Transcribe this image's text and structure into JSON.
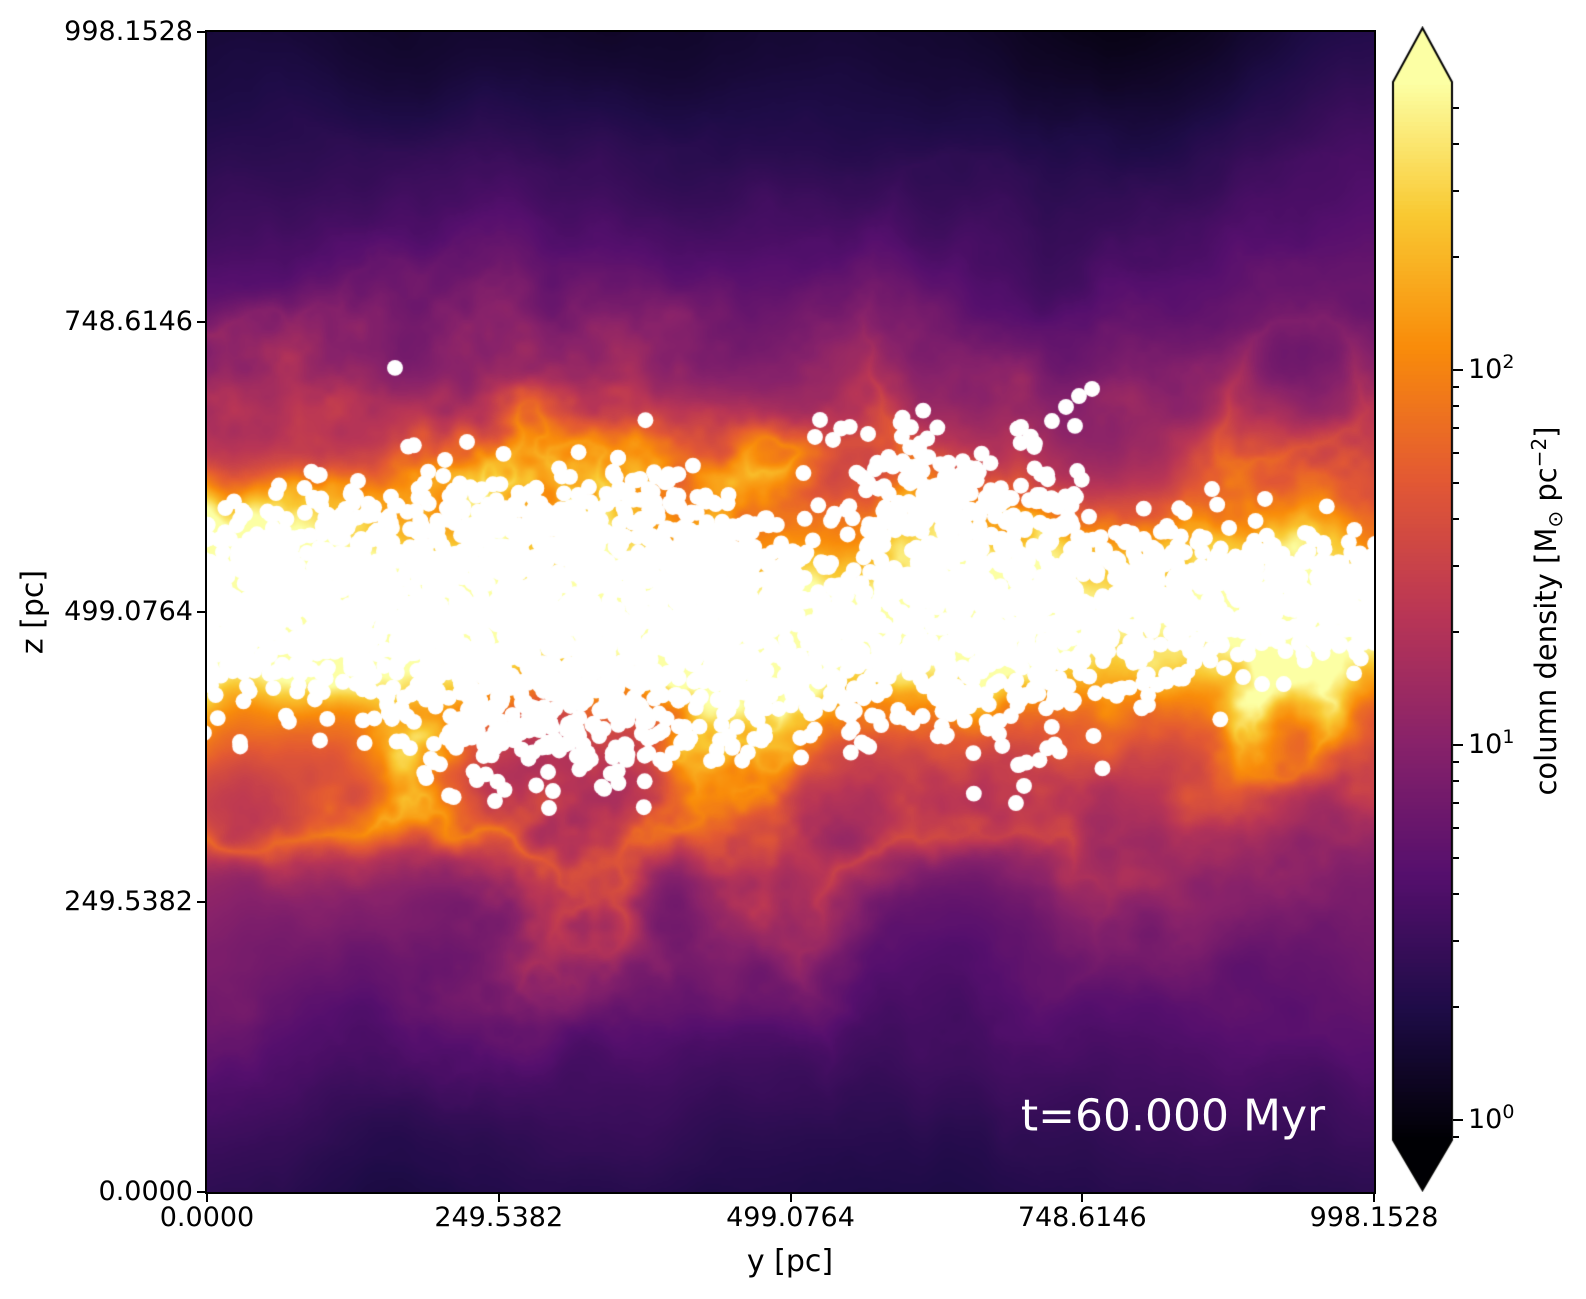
{
  "chart_data": {
    "type": "heatmap",
    "title": "",
    "xlabel": "y [pc]",
    "ylabel": "z [pc]",
    "x_range": [
      0.0,
      998.1528
    ],
    "z_range": [
      0.0,
      998.1528
    ],
    "x_ticks": [
      {
        "value": 0.0,
        "label": "0.0000"
      },
      {
        "value": 249.5382,
        "label": "249.5382"
      },
      {
        "value": 499.0764,
        "label": "499.0764"
      },
      {
        "value": 748.6146,
        "label": "748.6146"
      },
      {
        "value": 998.1528,
        "label": "998.1528"
      }
    ],
    "z_ticks": [
      {
        "value": 0.0,
        "label": "0.0000"
      },
      {
        "value": 249.5382,
        "label": "249.5382"
      },
      {
        "value": 499.0764,
        "label": "499.0764"
      },
      {
        "value": 748.6146,
        "label": "748.6146"
      },
      {
        "value": 998.1528,
        "label": "998.1528"
      }
    ],
    "annotation": {
      "text": "t=60.000 Myr",
      "color": "#ffffff"
    },
    "colorbar": {
      "label": {
        "pre": "column density [M",
        "sub": "⊙",
        "mid": " pc",
        "sup": "−2",
        "post": "]"
      },
      "scale": "log",
      "vmin": 0.885,
      "vmax": 586.0,
      "major_ticks": [
        {
          "value": 100,
          "base": "10",
          "exp": "2"
        },
        {
          "value": 10,
          "base": "10",
          "exp": "1"
        },
        {
          "value": 1,
          "base": "10",
          "exp": "0"
        }
      ],
      "minor_ticks_per_decade": [
        2,
        3,
        4,
        5,
        6,
        7,
        8,
        9
      ],
      "extend": "both",
      "colormap": "inferno"
    },
    "colormap_stops": [
      "#000004",
      "#1f0c48",
      "#550f6d",
      "#88226a",
      "#ba3655",
      "#e35933",
      "#f98c0a",
      "#f9c932",
      "#fcffa4"
    ],
    "field": {
      "description": "Edge-on gas column density map of a stratified galactic-disk ISM simulation: bright orange/yellow filamentary dense band at z~499 pc, purple diffuse halo with vertical plumes, near-black voids at top",
      "band_center_pc": 499.0,
      "band_scale_height_pc": 95,
      "halo_scale_height_pc": 330,
      "noise_seeds": {
        "base": 11,
        "plume": 23,
        "ridge": 47,
        "patch": 91
      }
    },
    "star_particles": {
      "color": "#ffffff",
      "radius_pc": 6.8,
      "seed": 1234,
      "clusters": [
        [
          7,
          505,
          21,
          34,
          120
        ],
        [
          80,
          501,
          51,
          39,
          260
        ],
        [
          182,
          509,
          60,
          43,
          300
        ],
        [
          285,
          518,
          60,
          47,
          300
        ],
        [
          388,
          501,
          51,
          43,
          260
        ],
        [
          323,
          423,
          51,
          39,
          180
        ],
        [
          225,
          423,
          43,
          34,
          140
        ],
        [
          473,
          518,
          34,
          26,
          90
        ],
        [
          460,
          449,
          38,
          34,
          120
        ],
        [
          559,
          475,
          43,
          39,
          160
        ],
        [
          644,
          544,
          51,
          47,
          220
        ],
        [
          665,
          475,
          60,
          47,
          260
        ],
        [
          747,
          509,
          51,
          43,
          220
        ],
        [
          824,
          509,
          38,
          30,
          130
        ],
        [
          892,
          514,
          43,
          26,
          130
        ],
        [
          961,
          509,
          38,
          24,
          120
        ],
        [
          998,
          509,
          21,
          26,
          70
        ],
        [
          422,
          544,
          43,
          30,
          140
        ],
        [
          293,
          578,
          51,
          26,
          90
        ],
        [
          122,
          561,
          43,
          26,
          80
        ],
        [
          610,
          604,
          38,
          26,
          80
        ]
      ],
      "outliers": [
        [
          160.8,
          709.1
        ],
        [
          524.3,
          664.3
        ],
        [
          535.4,
          647.1
        ],
        [
          520.0,
          649.7
        ],
        [
          565.4,
          652.3
        ],
        [
          722.7,
          663.4
        ],
        [
          734.7,
          675.5
        ],
        [
          745.8,
          684.9
        ],
        [
          757.0,
          691.0
        ],
        [
          742.4,
          659.2
        ],
        [
          203.6,
          629.9
        ],
        [
          222.4,
          645.4
        ],
        [
          859.6,
          604.9
        ],
        [
          874.2,
          571.4
        ],
        [
          803.2,
          462.1
        ],
        [
          869.9,
          450.9
        ],
        [
          886.2,
          443.1
        ],
        [
          902.4,
          437.1
        ],
        [
          693.7,
          367.4
        ],
        [
          698.8,
          349.4
        ],
        [
          691.9,
          334.7
        ],
        [
          246.3,
          336.4
        ],
        [
          291.7,
          361.4
        ],
        [
          295.9,
          345.0
        ],
        [
          292.5,
          330.4
        ],
        [
          34.2,
          462.1
        ],
        [
          34.2,
          435.4
        ]
      ]
    }
  }
}
